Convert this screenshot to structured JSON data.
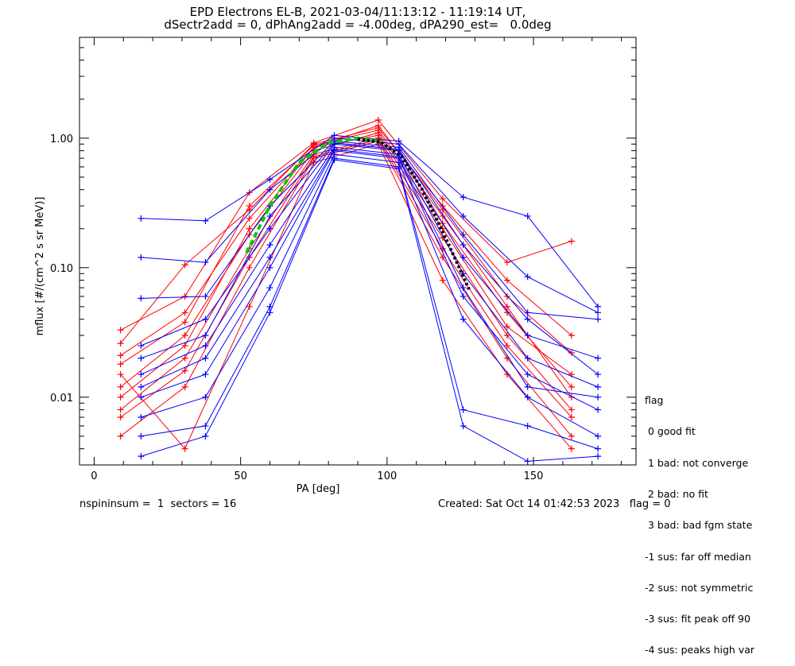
{
  "title": {
    "line1": "EPD Electrons EL-B, 2021-03-04/11:13:12 - 11:19:14 UT,",
    "line2": "dSectr2add = 0, dPhAng2add = -4.00deg, dPA290_est=   0.0deg"
  },
  "footer": {
    "left": "nspininsum =  1  sectors = 16",
    "right": "Created: Sat Oct 14 01:42:53 2023   flag = 0"
  },
  "legend": {
    "title": "flag",
    "items": [
      " 0 good fit",
      " 1 bad: not converge",
      " 2 bad: no fit",
      " 3 bad: bad fgm state",
      "-1 sus: far off median",
      "-2 sus: not symmetric",
      "-3 sus: fit peak off 90",
      "-4 sus: peaks high var"
    ]
  },
  "chart_data": {
    "type": "line",
    "xlabel": "PA [deg]",
    "ylabel": "mflux [#/(cm^2 s sr MeV)]",
    "xlim": [
      -5,
      185
    ],
    "ylim": [
      0.003,
      6.0
    ],
    "ylog": true,
    "xticks": [
      0,
      50,
      100,
      150
    ],
    "xtick_labels": [
      "0",
      "50",
      "100",
      "150"
    ],
    "yticks": [
      0.01,
      0.1,
      1.0
    ],
    "ytick_labels": [
      "0.01",
      "0.10",
      "1.00"
    ],
    "colors": {
      "red": "#ff0000",
      "blue": "#0000ff",
      "green": "#00cc00",
      "black": "#000000",
      "axis": "#000000"
    },
    "pa_bins_red": [
      9,
      31,
      53,
      75,
      97,
      119,
      141,
      163
    ],
    "pa_bins_blue": [
      16,
      38,
      60,
      82,
      104,
      126,
      148,
      172
    ],
    "series": [
      {
        "color": "red",
        "x": [
          9,
          31,
          53,
          75,
          97,
          119,
          141,
          163
        ],
        "y": [
          0.033,
          0.06,
          0.38,
          0.92,
          1.38,
          0.34,
          0.11,
          0.16
        ]
      },
      {
        "color": "red",
        "x": [
          9,
          31,
          53,
          75,
          97,
          119,
          141,
          163
        ],
        "y": [
          0.021,
          0.045,
          0.24,
          0.85,
          1.25,
          0.28,
          0.06,
          0.022
        ]
      },
      {
        "color": "red",
        "x": [
          9,
          31,
          53,
          75,
          97,
          119,
          141,
          163
        ],
        "y": [
          0.012,
          0.03,
          0.18,
          0.8,
          1.1,
          0.22,
          0.045,
          0.012
        ]
      },
      {
        "color": "red",
        "x": [
          9,
          31,
          53,
          75,
          97,
          119,
          141,
          163
        ],
        "y": [
          0.008,
          0.02,
          0.14,
          0.75,
          1.0,
          0.17,
          0.03,
          0.008
        ]
      },
      {
        "color": "red",
        "x": [
          9,
          31,
          53,
          75,
          97,
          119,
          141,
          163
        ],
        "y": [
          0.005,
          0.012,
          0.1,
          0.7,
          0.95,
          0.12,
          0.02,
          0.005
        ]
      },
      {
        "color": "red",
        "x": [
          9,
          31,
          53,
          75,
          97,
          119,
          141,
          163
        ],
        "y": [
          0.026,
          0.105,
          0.28,
          0.9,
          1.2,
          0.3,
          0.08,
          0.03
        ]
      },
      {
        "color": "red",
        "x": [
          9,
          31,
          53,
          75,
          97,
          119,
          141,
          163
        ],
        "y": [
          0.015,
          0.004,
          0.05,
          0.65,
          0.9,
          0.08,
          0.015,
          0.004
        ]
      },
      {
        "color": "red",
        "x": [
          9,
          31,
          53,
          75,
          97,
          119,
          141,
          163
        ],
        "y": [
          0.01,
          0.025,
          0.2,
          0.85,
          1.05,
          0.2,
          0.035,
          0.015
        ]
      },
      {
        "color": "red",
        "x": [
          9,
          31,
          53,
          75,
          97,
          119,
          141,
          163
        ],
        "y": [
          0.018,
          0.038,
          0.3,
          0.88,
          1.15,
          0.25,
          0.05,
          0.01
        ]
      },
      {
        "color": "red",
        "x": [
          9,
          31,
          53,
          75,
          97,
          119,
          141,
          163
        ],
        "y": [
          0.007,
          0.016,
          0.12,
          0.72,
          0.98,
          0.14,
          0.025,
          0.007
        ]
      },
      {
        "color": "blue",
        "x": [
          16,
          38,
          60,
          82,
          104,
          126,
          148,
          172
        ],
        "y": [
          0.24,
          0.23,
          0.48,
          1.05,
          0.95,
          0.35,
          0.25,
          0.05
        ]
      },
      {
        "color": "blue",
        "x": [
          16,
          38,
          60,
          82,
          104,
          126,
          148,
          172
        ],
        "y": [
          0.12,
          0.11,
          0.4,
          1.0,
          0.9,
          0.25,
          0.085,
          0.045
        ]
      },
      {
        "color": "blue",
        "x": [
          16,
          38,
          60,
          82,
          104,
          126,
          148,
          172
        ],
        "y": [
          0.058,
          0.06,
          0.3,
          0.95,
          0.85,
          0.18,
          0.045,
          0.04
        ]
      },
      {
        "color": "blue",
        "x": [
          16,
          38,
          60,
          82,
          104,
          126,
          148,
          172
        ],
        "y": [
          0.025,
          0.04,
          0.2,
          0.9,
          0.8,
          0.12,
          0.03,
          0.02
        ]
      },
      {
        "color": "blue",
        "x": [
          16,
          38,
          60,
          82,
          104,
          126,
          148,
          172
        ],
        "y": [
          0.015,
          0.025,
          0.15,
          0.85,
          0.75,
          0.09,
          0.02,
          0.012
        ]
      },
      {
        "color": "blue",
        "x": [
          16,
          38,
          60,
          82,
          104,
          126,
          148,
          172
        ],
        "y": [
          0.01,
          0.015,
          0.1,
          0.8,
          0.7,
          0.06,
          0.015,
          0.008
        ]
      },
      {
        "color": "blue",
        "x": [
          16,
          38,
          60,
          82,
          104,
          126,
          148,
          172
        ],
        "y": [
          0.007,
          0.01,
          0.07,
          0.75,
          0.65,
          0.04,
          0.01,
          0.005
        ]
      },
      {
        "color": "blue",
        "x": [
          16,
          38,
          60,
          82,
          104,
          126,
          148,
          172
        ],
        "y": [
          0.005,
          0.006,
          0.05,
          0.7,
          0.6,
          0.008,
          0.006,
          0.004
        ]
      },
      {
        "color": "blue",
        "x": [
          16,
          38,
          60,
          82,
          104,
          126,
          148,
          172
        ],
        "y": [
          0.02,
          0.03,
          0.25,
          0.92,
          0.82,
          0.15,
          0.04,
          0.015
        ]
      },
      {
        "color": "blue",
        "x": [
          16,
          38,
          60,
          82,
          104,
          126,
          148,
          172
        ],
        "y": [
          0.012,
          0.02,
          0.12,
          0.82,
          0.72,
          0.07,
          0.012,
          0.01
        ]
      },
      {
        "color": "blue",
        "x": [
          16,
          38,
          60,
          82,
          104,
          126,
          148,
          172
        ],
        "y": [
          0.0035,
          0.005,
          0.045,
          0.68,
          0.58,
          0.006,
          0.0032,
          0.0035
        ]
      }
    ],
    "fit_curves": [
      {
        "color": "green",
        "style": "dashed",
        "x": [
          52,
          60,
          70,
          80,
          90,
          98
        ],
        "y": [
          0.13,
          0.3,
          0.65,
          0.92,
          1.0,
          0.95
        ]
      },
      {
        "color": "black",
        "style": "dotted",
        "x": [
          90,
          98,
          105,
          112,
          120,
          128
        ],
        "y": [
          0.98,
          0.93,
          0.72,
          0.4,
          0.17,
          0.068
        ]
      }
    ]
  }
}
